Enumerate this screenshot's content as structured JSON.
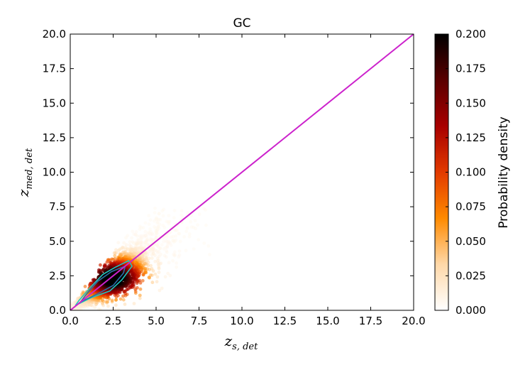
{
  "chart_data": {
    "type": "heatmap",
    "title": "GC",
    "xlabel": {
      "main": "z",
      "sub": "s, det"
    },
    "ylabel": {
      "main": "z",
      "sub": "med, det"
    },
    "xlim": [
      0,
      20
    ],
    "ylim": [
      0,
      20
    ],
    "xticks": [
      "0.0",
      "2.5",
      "5.0",
      "7.5",
      "10.0",
      "12.5",
      "15.0",
      "17.5",
      "20.0"
    ],
    "yticks": [
      "0.0",
      "2.5",
      "5.0",
      "7.5",
      "10.0",
      "12.5",
      "15.0",
      "17.5",
      "20.0"
    ],
    "grid": false,
    "colorbar": {
      "label": "Probability density",
      "range": [
        0.0,
        0.2
      ],
      "ticks": [
        "0.000",
        "0.025",
        "0.050",
        "0.075",
        "0.100",
        "0.125",
        "0.150",
        "0.175",
        "0.200"
      ],
      "colormap": "gist_heat_r",
      "colors": [
        "#ffffff",
        "#ffd8a8",
        "#ff8a00",
        "#e23a00",
        "#a80000",
        "#5a0000",
        "#000000"
      ]
    },
    "identity_line": {
      "x": [
        0,
        20
      ],
      "y": [
        0,
        20
      ],
      "color": "#cc22cc"
    },
    "density_cloud": {
      "x_range": [
        0.1,
        8.5
      ],
      "y_range": [
        0.1,
        7.5
      ],
      "peak": [
        2.5,
        2.3
      ]
    },
    "contours": [
      {
        "level": "outer",
        "color": "#1fc6c0",
        "points": [
          [
            0.3,
            0.35
          ],
          [
            1.2,
            0.9
          ],
          [
            2.3,
            1.4
          ],
          [
            3.0,
            2.2
          ],
          [
            3.6,
            3.2
          ],
          [
            3.4,
            3.6
          ],
          [
            2.6,
            3.1
          ],
          [
            1.9,
            2.6
          ],
          [
            1.2,
            1.7
          ],
          [
            0.5,
            0.7
          ]
        ]
      },
      {
        "level": "inner",
        "color": "#2a6fa8",
        "points": [
          [
            0.6,
            0.6
          ],
          [
            1.6,
            1.2
          ],
          [
            2.5,
            1.8
          ],
          [
            3.1,
            2.7
          ],
          [
            3.2,
            3.2
          ],
          [
            2.4,
            2.8
          ],
          [
            1.6,
            2.1
          ],
          [
            0.9,
            1.1
          ]
        ]
      }
    ]
  }
}
